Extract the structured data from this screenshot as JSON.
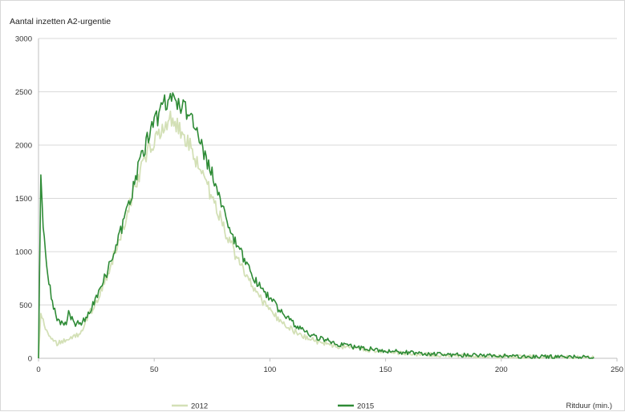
{
  "chart_data": {
    "type": "line",
    "title": "",
    "ylabel": "Aantal inzetten A2-urgentie",
    "xlabel": "Ritduur (min.)",
    "xlim": [
      0,
      250
    ],
    "ylim": [
      0,
      3000
    ],
    "x_ticks": [
      0,
      50,
      100,
      150,
      200,
      250
    ],
    "y_ticks": [
      0,
      500,
      1000,
      1500,
      2000,
      2500,
      3000
    ],
    "grid": "horizontal",
    "legend_position": "bottom",
    "series": [
      {
        "name": "2012",
        "color": "#d3e0b6",
        "x": [
          0,
          1,
          2,
          4,
          6,
          8,
          10,
          12,
          14,
          16,
          18,
          20,
          22,
          25,
          28,
          30,
          33,
          36,
          40,
          43,
          46,
          48,
          50,
          52,
          54,
          56,
          58,
          60,
          62,
          64,
          66,
          68,
          70,
          72,
          75,
          78,
          81,
          84,
          88,
          92,
          96,
          100,
          105,
          110,
          115,
          120,
          130,
          140,
          150,
          160,
          170,
          180,
          190,
          200,
          210,
          220,
          230,
          240
        ],
        "values": [
          0,
          420,
          340,
          240,
          170,
          140,
          150,
          170,
          190,
          210,
          240,
          330,
          420,
          520,
          680,
          800,
          990,
          1200,
          1480,
          1700,
          1890,
          1980,
          2050,
          2120,
          2190,
          2240,
          2250,
          2200,
          2120,
          2050,
          1960,
          1870,
          1780,
          1680,
          1500,
          1350,
          1180,
          1020,
          850,
          690,
          560,
          450,
          340,
          260,
          200,
          160,
          110,
          80,
          58,
          42,
          33,
          25,
          20,
          16,
          13,
          11,
          9,
          8
        ]
      },
      {
        "name": "2015",
        "color": "#2e8b36",
        "x": [
          0,
          1,
          2,
          3,
          4,
          6,
          8,
          10,
          12,
          13,
          14,
          16,
          18,
          20,
          22,
          25,
          28,
          30,
          33,
          36,
          40,
          43,
          46,
          48,
          50,
          52,
          54,
          56,
          58,
          60,
          62,
          64,
          66,
          68,
          70,
          72,
          75,
          78,
          81,
          84,
          88,
          92,
          96,
          100,
          105,
          110,
          115,
          120,
          130,
          140,
          150,
          160,
          170,
          180,
          190,
          200,
          210,
          220,
          230,
          240
        ],
        "values": [
          0,
          1720,
          1260,
          1020,
          780,
          520,
          380,
          330,
          330,
          450,
          380,
          320,
          330,
          370,
          440,
          560,
          720,
          830,
          1010,
          1220,
          1530,
          1770,
          1990,
          2110,
          2200,
          2290,
          2380,
          2440,
          2440,
          2400,
          2380,
          2300,
          2220,
          2140,
          2020,
          1920,
          1720,
          1520,
          1330,
          1150,
          960,
          790,
          660,
          560,
          430,
          330,
          250,
          200,
          130,
          95,
          70,
          52,
          40,
          32,
          26,
          22,
          18,
          15,
          12,
          10
        ]
      }
    ]
  }
}
